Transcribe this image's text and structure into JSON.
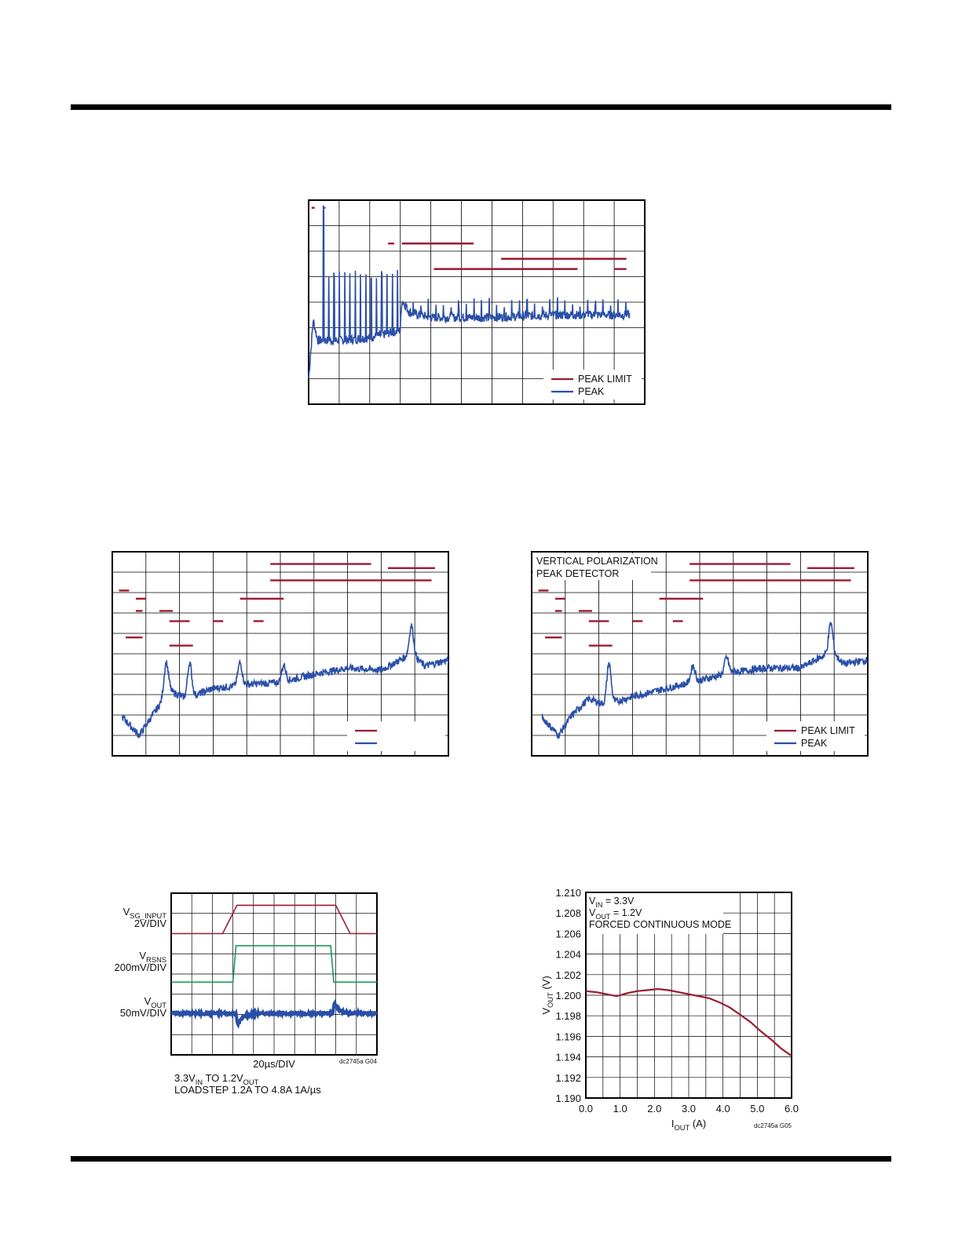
{
  "colors": {
    "peak_limit": "#9b1b30",
    "peak": "#2a4fa8",
    "rsns": "#1a9a55",
    "grid": "#000000"
  },
  "chart_data": [
    {
      "type": "line",
      "legend": [
        "PEAK LIMIT",
        "PEAK"
      ],
      "legend_position": "bottom-right",
      "grid": true,
      "x_divisions": 11,
      "y_divisions": 8,
      "annotation": "",
      "peak_limit_segments": [
        {
          "x": [
            0.1,
            0.2
          ],
          "level": 7.7
        },
        {
          "x": [
            0.5,
            0.55
          ],
          "level": 7.7
        },
        {
          "x": [
            2.6,
            2.8
          ],
          "level": 6.3
        },
        {
          "x": [
            3.05,
            5.4
          ],
          "level": 6.3
        },
        {
          "x": [
            6.3,
            10.4
          ],
          "level": 5.7
        },
        {
          "x": [
            10.0,
            10.4
          ],
          "level": 5.3
        },
        {
          "x": [
            4.1,
            8.8
          ],
          "level": 5.3
        }
      ],
      "peak_trace": {
        "x": [
          0.0,
          0.15,
          0.3,
          1.0,
          2.0,
          3.0,
          3.05,
          3.3,
          4.0,
          6.0,
          8.0,
          10.5
        ],
        "level": [
          1.0,
          3.3,
          2.5,
          2.5,
          2.6,
          2.9,
          4.1,
          3.6,
          3.4,
          3.4,
          3.5,
          3.5
        ]
      },
      "peak_spikes": {
        "region1": {
          "x_start": 0.4,
          "x_end": 3.0,
          "count": 15,
          "level": 5.1
        },
        "region2": {
          "x_start": 3.05,
          "x_end": 10.5,
          "count": 30,
          "level": 4.0
        }
      }
    },
    {
      "type": "line",
      "legend": [
        "",
        ""
      ],
      "legend_position": "bottom-right",
      "grid": true,
      "x_divisions": 10,
      "y_divisions": 10,
      "annotation": "",
      "peak_limit_segments": [
        {
          "x": [
            4.7,
            7.7
          ],
          "level": 9.4
        },
        {
          "x": [
            8.2,
            9.6
          ],
          "level": 9.2
        },
        {
          "x": [
            4.7,
            9.5
          ],
          "level": 8.6
        },
        {
          "x": [
            0.2,
            0.5
          ],
          "level": 8.1
        },
        {
          "x": [
            0.7,
            1.0
          ],
          "level": 7.7
        },
        {
          "x": [
            3.8,
            5.1
          ],
          "level": 7.7
        },
        {
          "x": [
            0.7,
            0.9
          ],
          "level": 7.1
        },
        {
          "x": [
            1.4,
            1.8
          ],
          "level": 7.1
        },
        {
          "x": [
            1.7,
            2.3
          ],
          "level": 6.6
        },
        {
          "x": [
            3.0,
            3.3
          ],
          "level": 6.6
        },
        {
          "x": [
            4.2,
            4.5
          ],
          "level": 6.6
        },
        {
          "x": [
            0.4,
            0.9
          ],
          "level": 5.8
        },
        {
          "x": [
            1.7,
            2.4
          ],
          "level": 5.4
        }
      ],
      "peak_trace": {
        "x": [
          0.3,
          0.8,
          1.2,
          1.7,
          2.2,
          3.0,
          4.0,
          5.0,
          6.0,
          7.0,
          8.0,
          8.9,
          9.3,
          10.0
        ],
        "level": [
          1.9,
          1.0,
          2.0,
          3.2,
          2.8,
          3.3,
          3.5,
          3.6,
          4.0,
          4.3,
          4.2,
          5.0,
          4.4,
          4.7
        ]
      },
      "peak_bumps": [
        {
          "x": 1.6,
          "height": 1.6
        },
        {
          "x": 2.3,
          "height": 1.7
        },
        {
          "x": 3.8,
          "height": 1.1
        },
        {
          "x": 5.1,
          "height": 0.8
        },
        {
          "x": 8.9,
          "height": 1.4
        }
      ]
    },
    {
      "type": "line",
      "legend": [
        "PEAK LIMIT",
        "PEAK"
      ],
      "legend_position": "bottom-right",
      "grid": true,
      "x_divisions": 10,
      "y_divisions": 10,
      "annotation": [
        "VERTICAL POLARIZATION",
        "PEAK DETECTOR"
      ],
      "peak_limit_segments": [
        {
          "x": [
            4.7,
            7.7
          ],
          "level": 9.4
        },
        {
          "x": [
            8.2,
            9.6
          ],
          "level": 9.2
        },
        {
          "x": [
            4.7,
            9.5
          ],
          "level": 8.6
        },
        {
          "x": [
            0.2,
            0.5
          ],
          "level": 8.1
        },
        {
          "x": [
            0.7,
            1.0
          ],
          "level": 7.7
        },
        {
          "x": [
            3.8,
            5.1
          ],
          "level": 7.7
        },
        {
          "x": [
            0.7,
            0.9
          ],
          "level": 7.1
        },
        {
          "x": [
            1.4,
            1.8
          ],
          "level": 7.1
        },
        {
          "x": [
            1.7,
            2.3
          ],
          "level": 6.6
        },
        {
          "x": [
            3.0,
            3.3
          ],
          "level": 6.6
        },
        {
          "x": [
            4.2,
            4.5
          ],
          "level": 6.6
        },
        {
          "x": [
            0.4,
            0.9
          ],
          "level": 5.8
        },
        {
          "x": [
            1.7,
            2.4
          ],
          "level": 5.4
        }
      ],
      "peak_trace": {
        "x": [
          0.3,
          0.8,
          1.2,
          1.7,
          2.2,
          3.0,
          4.0,
          5.0,
          6.0,
          7.0,
          8.0,
          8.9,
          9.3,
          10.0
        ],
        "level": [
          1.9,
          1.0,
          2.0,
          2.8,
          2.5,
          2.9,
          3.3,
          3.7,
          4.1,
          4.3,
          4.3,
          5.1,
          4.5,
          4.7
        ]
      },
      "peak_bumps": [
        {
          "x": 2.3,
          "height": 2.0
        },
        {
          "x": 4.8,
          "height": 0.8
        },
        {
          "x": 5.8,
          "height": 0.8
        },
        {
          "x": 8.9,
          "height": 1.4
        }
      ]
    },
    {
      "type": "line",
      "grid": true,
      "x_divisions": 10,
      "y_divisions": 8,
      "channel_labels": [
        {
          "name": "V",
          "sub": "SG_INPUT",
          "scale": "2V/DIV"
        },
        {
          "name": "V",
          "sub": "RSNS",
          "scale": "200mV/DIV"
        },
        {
          "name": "V",
          "sub": "OUT",
          "scale": "50mV/DIV"
        }
      ],
      "xlabel": "20µs/DIV",
      "code": "dc2745a G04",
      "caption_line1": {
        "a": "3.3V",
        "a_sub": "IN",
        "b": " TO 1.2V",
        "b_sub": "OUT"
      },
      "caption_line2": "LOADSTEP 1.2A TO 4.8A 1A/µs",
      "traces": {
        "sg_input": {
          "x": [
            0,
            2.5,
            3.2,
            8.0,
            8.0,
            8.7,
            10
          ],
          "y": [
            6.0,
            6.0,
            7.4,
            7.4,
            7.4,
            6.0,
            6.0
          ]
        },
        "rsns": {
          "x": [
            0,
            3.0,
            3.15,
            7.75,
            7.9,
            10
          ],
          "y": [
            3.6,
            3.6,
            5.4,
            5.4,
            3.6,
            3.6
          ]
        },
        "vout_events": [
          {
            "x": 3.15,
            "dip": -0.8
          },
          {
            "x": 7.85,
            "bump": 0.7
          }
        ],
        "vout_level": 2.05
      }
    },
    {
      "type": "line",
      "title_lines": [
        {
          "a": "V",
          "a_sub": "IN",
          "b": " = 3.3V"
        },
        {
          "a": "V",
          "a_sub": "OUT",
          "b": " = 1.2V"
        },
        {
          "a": "FORCED CONTINUOUS MODE",
          "a_sub": "",
          "b": ""
        }
      ],
      "ylabel": {
        "a": "V",
        "a_sub": "OUT",
        "b": " (V)"
      },
      "xlabel": {
        "a": "I",
        "a_sub": "OUT",
        "b": " (A)"
      },
      "code": "dc2745a G05",
      "xlim": [
        0,
        6
      ],
      "ylim": [
        1.19,
        1.21
      ],
      "xticks": [
        "0.0",
        "1.0",
        "2.0",
        "3.0",
        "4.0",
        "5.0",
        "6.0"
      ],
      "yticks": [
        "1.210",
        "1.208",
        "1.206",
        "1.204",
        "1.202",
        "1.200",
        "1.198",
        "1.196",
        "1.194",
        "1.192",
        "1.190"
      ],
      "series": [
        {
          "x": [
            0.0,
            0.3,
            0.6,
            0.9,
            1.2,
            1.5,
            1.8,
            2.1,
            2.4,
            2.7,
            3.0,
            3.3,
            3.6,
            3.9,
            4.2,
            4.5,
            4.8,
            5.1,
            5.4,
            5.7,
            6.0
          ],
          "values": [
            1.2004,
            1.2003,
            1.2001,
            1.1999,
            1.2002,
            1.2004,
            1.2005,
            1.2006,
            1.2005,
            1.2003,
            1.2001,
            1.1999,
            1.1997,
            1.1993,
            1.1988,
            1.1981,
            1.1974,
            1.1965,
            1.1957,
            1.1948,
            1.1941
          ]
        }
      ]
    }
  ]
}
